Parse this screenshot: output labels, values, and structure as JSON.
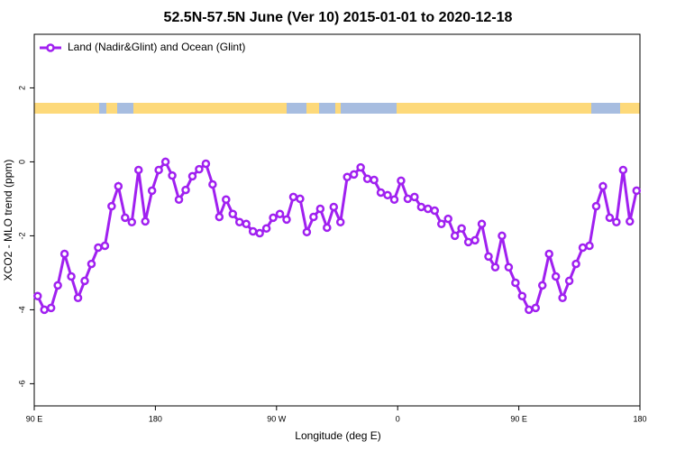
{
  "chart_data": {
    "type": "line",
    "title": "52.5N-57.5N June (Ver 10)   2015-01-01 to 2020-12-18",
    "xlabel": "Longitude (deg E)",
    "ylabel": "XCO2 - MLO trend (ppm)",
    "xlim": [
      90,
      540
    ],
    "ylim": [
      -6.6,
      3.45
    ],
    "xticks": [
      {
        "value": 90,
        "label": "90 E"
      },
      180,
      {
        "value": 270,
        "label": "90 W"
      },
      {
        "value": 360,
        "label": "0"
      },
      {
        "value": 450,
        "label": "90 E"
      },
      {
        "value": 540,
        "label": "180"
      }
    ],
    "yticks": [
      2,
      0,
      -2,
      -4,
      -6
    ],
    "legend": "topleft",
    "x": [
      92.5,
      97.5,
      102.5,
      107.5,
      112.5,
      117.5,
      122.5,
      127.5,
      132.5,
      137.5,
      142.5,
      147.5,
      152.5,
      157.5,
      162.5,
      167.5,
      172.5,
      177.5,
      182.5,
      187.5,
      192.5,
      197.5,
      202.5,
      207.5,
      212.5,
      217.5,
      222.5,
      227.5,
      232.5,
      237.5,
      242.5,
      247.5,
      252.5,
      257.5,
      262.5,
      267.5,
      272.5,
      277.5,
      282.5,
      287.5,
      292.5,
      297.5,
      302.5,
      307.5,
      312.5,
      317.5,
      322.5,
      327.5,
      332.5,
      337.5,
      342.5,
      347.5,
      352.5,
      357.5,
      362.5,
      367.5,
      372.5,
      377.5,
      382.5,
      387.5,
      392.5,
      397.5,
      402.5,
      407.5,
      412.5,
      417.5,
      422.5,
      427.5,
      432.5,
      437.5,
      442.5,
      447.5,
      452.5,
      457.5,
      462.5,
      467.5,
      472.5,
      477.5,
      482.5,
      487.5,
      492.5,
      497.5,
      502.5,
      507.5,
      512.5,
      517.5,
      522.5,
      527.5,
      532.5,
      537.5
    ],
    "series": [
      {
        "name": "Land (Nadir&Glint) and Ocean (Glint)",
        "color": "#a020f0",
        "values": [
          -3.63,
          -4.0,
          -3.95,
          -3.34,
          -2.49,
          -3.1,
          -3.68,
          -3.22,
          -2.76,
          -2.32,
          -2.27,
          -1.2,
          -0.66,
          -1.51,
          -1.63,
          -0.22,
          -1.61,
          -0.78,
          -0.22,
          0.0,
          -0.37,
          -1.02,
          -0.76,
          -0.39,
          -0.2,
          -0.05,
          -0.61,
          -1.49,
          -1.02,
          -1.41,
          -1.63,
          -1.68,
          -1.88,
          -1.93,
          -1.8,
          -1.51,
          -1.41,
          -1.56,
          -0.95,
          -1.0,
          -1.9,
          -1.49,
          -1.27,
          -1.78,
          -1.22,
          -1.63,
          -0.41,
          -0.34,
          -0.15,
          -0.46,
          -0.49,
          -0.83,
          -0.9,
          -1.02,
          -0.51,
          -1.0,
          -0.95,
          -1.22,
          -1.27,
          -1.32,
          -1.68,
          -1.54,
          -2.0,
          -1.8,
          -2.17,
          -2.12,
          -1.68,
          -2.56,
          -2.85,
          -2.0,
          -2.85,
          -3.27,
          -3.63,
          -4.0,
          -3.95,
          -3.34,
          -2.49,
          -3.1,
          -3.68,
          -3.22,
          -2.76,
          -2.32,
          -2.27,
          -1.2,
          -0.66,
          -1.51,
          -1.63,
          -0.22,
          -1.61,
          -0.78
        ]
      }
    ]
  }
}
